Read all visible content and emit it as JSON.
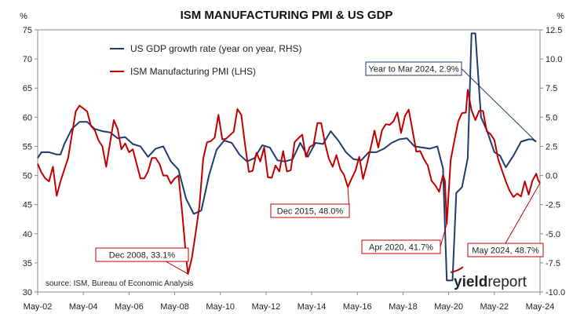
{
  "chart_data": {
    "type": "line",
    "title": "ISM MANUFACTURING PMI & US GDP",
    "left_axis": {
      "unit": "%",
      "ylim": [
        30,
        75
      ],
      "ticks": [
        "30",
        "35",
        "40",
        "45",
        "50",
        "55",
        "60",
        "65",
        "70",
        "75"
      ]
    },
    "right_axis": {
      "unit": "%",
      "ylim": [
        -10.0,
        12.5
      ],
      "ticks": [
        "-10.0",
        "-7.5",
        "-5.0",
        "-2.5",
        "0.0",
        "2.5",
        "5.0",
        "7.5",
        "10.0",
        "12.5"
      ]
    },
    "x_ticks": [
      "May-02",
      "May-04",
      "May-06",
      "May-08",
      "May-10",
      "May-12",
      "May-14",
      "May-16",
      "May-18",
      "May-20",
      "May-22",
      "May-24"
    ],
    "grid": false,
    "legend_position": "top-left",
    "series": [
      {
        "name": "US GDP growth rate (year on year, RHS)",
        "axis": "right",
        "color": "#1f3a6e",
        "points": [
          [
            "2002-05",
            1.5
          ],
          [
            "2002-07",
            2.0
          ],
          [
            "2002-11",
            2.0
          ],
          [
            "2003-03",
            1.8
          ],
          [
            "2003-05",
            1.8
          ],
          [
            "2003-07",
            2.7
          ],
          [
            "2003-11",
            4.0
          ],
          [
            "2004-03",
            4.6
          ],
          [
            "2004-07",
            4.6
          ],
          [
            "2004-11",
            4.0
          ],
          [
            "2005-03",
            3.8
          ],
          [
            "2005-07",
            3.7
          ],
          [
            "2005-11",
            3.2
          ],
          [
            "2006-03",
            3.3
          ],
          [
            "2006-07",
            2.7
          ],
          [
            "2006-11",
            2.5
          ],
          [
            "2007-03",
            1.6
          ],
          [
            "2007-07",
            2.3
          ],
          [
            "2007-11",
            2.5
          ],
          [
            "2008-03",
            1.2
          ],
          [
            "2008-07",
            0.5
          ],
          [
            "2008-11",
            -2.0
          ],
          [
            "2009-03",
            -3.3
          ],
          [
            "2009-07",
            -3.0
          ],
          [
            "2009-11",
            0.0
          ],
          [
            "2010-03",
            2.2
          ],
          [
            "2010-07",
            3.0
          ],
          [
            "2010-11",
            2.8
          ],
          [
            "2011-03",
            1.8
          ],
          [
            "2011-07",
            1.2
          ],
          [
            "2011-11",
            1.5
          ],
          [
            "2012-03",
            2.6
          ],
          [
            "2012-07",
            2.4
          ],
          [
            "2012-11",
            1.3
          ],
          [
            "2013-03",
            1.2
          ],
          [
            "2013-07",
            1.4
          ],
          [
            "2013-11",
            2.8
          ],
          [
            "2014-03",
            1.6
          ],
          [
            "2014-07",
            2.8
          ],
          [
            "2014-11",
            2.7
          ],
          [
            "2015-03",
            3.8
          ],
          [
            "2015-07",
            3.0
          ],
          [
            "2015-11",
            2.0
          ],
          [
            "2016-03",
            1.4
          ],
          [
            "2016-07",
            1.3
          ],
          [
            "2016-11",
            2.0
          ],
          [
            "2017-03",
            2.0
          ],
          [
            "2017-07",
            2.3
          ],
          [
            "2017-11",
            2.8
          ],
          [
            "2018-03",
            3.1
          ],
          [
            "2018-07",
            3.2
          ],
          [
            "2018-11",
            2.5
          ],
          [
            "2019-03",
            2.4
          ],
          [
            "2019-07",
            2.3
          ],
          [
            "2019-11",
            2.5
          ],
          [
            "2020-02",
            0.6
          ],
          [
            "2020-04",
            -9.0
          ],
          [
            "2020-07",
            -9.0
          ],
          [
            "2020-09",
            -1.5
          ],
          [
            "2020-12",
            -1.0
          ],
          [
            "2021-03",
            1.5
          ],
          [
            "2021-05",
            12.2
          ],
          [
            "2021-07",
            12.2
          ],
          [
            "2021-10",
            5.0
          ],
          [
            "2022-01",
            3.9
          ],
          [
            "2022-05",
            2.0
          ],
          [
            "2022-08",
            1.7
          ],
          [
            "2022-11",
            0.7
          ],
          [
            "2023-03",
            1.7
          ],
          [
            "2023-07",
            2.9
          ],
          [
            "2023-11",
            3.1
          ],
          [
            "2024-01",
            3.1
          ],
          [
            "2024-03",
            2.9
          ]
        ]
      },
      {
        "name": "ISM Manufacturing PMI (LHS)",
        "axis": "left",
        "color": "#c00000",
        "points": [
          [
            "2002-05",
            52.0
          ],
          [
            "2002-07",
            50.5
          ],
          [
            "2002-09",
            49.5
          ],
          [
            "2002-11",
            49.0
          ],
          [
            "2003-01",
            51.5
          ],
          [
            "2003-03",
            46.5
          ],
          [
            "2003-05",
            49.0
          ],
          [
            "2003-07",
            51.0
          ],
          [
            "2003-09",
            53.0
          ],
          [
            "2003-11",
            57.0
          ],
          [
            "2004-01",
            61.0
          ],
          [
            "2004-03",
            62.0
          ],
          [
            "2004-05",
            61.5
          ],
          [
            "2004-07",
            61.0
          ],
          [
            "2004-09",
            58.5
          ],
          [
            "2004-11",
            57.8
          ],
          [
            "2005-01",
            56.0
          ],
          [
            "2005-03",
            55.0
          ],
          [
            "2005-05",
            51.5
          ],
          [
            "2005-07",
            55.5
          ],
          [
            "2005-09",
            59.5
          ],
          [
            "2005-11",
            58.0
          ],
          [
            "2006-01",
            54.5
          ],
          [
            "2006-03",
            55.5
          ],
          [
            "2006-05",
            54.0
          ],
          [
            "2006-07",
            54.5
          ],
          [
            "2006-09",
            52.0
          ],
          [
            "2006-11",
            49.5
          ],
          [
            "2007-01",
            49.5
          ],
          [
            "2007-03",
            50.7
          ],
          [
            "2007-05",
            53.0
          ],
          [
            "2007-07",
            53.0
          ],
          [
            "2007-09",
            52.0
          ],
          [
            "2007-11",
            50.0
          ],
          [
            "2008-01",
            50.0
          ],
          [
            "2008-03",
            48.6
          ],
          [
            "2008-05",
            49.5
          ],
          [
            "2008-07",
            50.0
          ],
          [
            "2008-09",
            43.5
          ],
          [
            "2008-11",
            36.0
          ],
          [
            "2008-12",
            33.1
          ],
          [
            "2009-02",
            35.8
          ],
          [
            "2009-04",
            40.1
          ],
          [
            "2009-06",
            44.8
          ],
          [
            "2009-08",
            52.9
          ],
          [
            "2009-10",
            55.7
          ],
          [
            "2009-12",
            55.9
          ],
          [
            "2010-02",
            56.5
          ],
          [
            "2010-04",
            60.4
          ],
          [
            "2010-06",
            56.2
          ],
          [
            "2010-08",
            56.3
          ],
          [
            "2010-10",
            56.9
          ],
          [
            "2010-12",
            57.5
          ],
          [
            "2011-02",
            61.4
          ],
          [
            "2011-04",
            60.4
          ],
          [
            "2011-06",
            55.3
          ],
          [
            "2011-08",
            50.6
          ],
          [
            "2011-10",
            50.8
          ],
          [
            "2011-12",
            53.9
          ],
          [
            "2012-02",
            52.4
          ],
          [
            "2012-04",
            54.8
          ],
          [
            "2012-06",
            49.7
          ],
          [
            "2012-08",
            49.6
          ],
          [
            "2012-10",
            51.7
          ],
          [
            "2012-12",
            50.7
          ],
          [
            "2013-02",
            54.2
          ],
          [
            "2013-04",
            50.7
          ],
          [
            "2013-06",
            50.9
          ],
          [
            "2013-08",
            55.7
          ],
          [
            "2013-10",
            56.4
          ],
          [
            "2013-12",
            57.0
          ],
          [
            "2014-02",
            53.2
          ],
          [
            "2014-04",
            54.9
          ],
          [
            "2014-06",
            55.3
          ],
          [
            "2014-08",
            59.0
          ],
          [
            "2014-10",
            59.0
          ],
          [
            "2014-12",
            55.5
          ],
          [
            "2015-02",
            52.9
          ],
          [
            "2015-04",
            51.5
          ],
          [
            "2015-06",
            53.5
          ],
          [
            "2015-08",
            51.1
          ],
          [
            "2015-10",
            50.1
          ],
          [
            "2015-12",
            48.0
          ],
          [
            "2016-02",
            49.5
          ],
          [
            "2016-04",
            50.8
          ],
          [
            "2016-06",
            53.2
          ],
          [
            "2016-08",
            49.4
          ],
          [
            "2016-10",
            51.9
          ],
          [
            "2016-12",
            54.7
          ],
          [
            "2017-02",
            57.7
          ],
          [
            "2017-04",
            54.8
          ],
          [
            "2017-06",
            57.8
          ],
          [
            "2017-08",
            58.8
          ],
          [
            "2017-10",
            58.7
          ],
          [
            "2017-12",
            59.3
          ],
          [
            "2018-02",
            60.8
          ],
          [
            "2018-04",
            57.3
          ],
          [
            "2018-06",
            60.2
          ],
          [
            "2018-08",
            61.3
          ],
          [
            "2018-10",
            57.7
          ],
          [
            "2018-12",
            54.1
          ],
          [
            "2019-02",
            54.2
          ],
          [
            "2019-04",
            52.8
          ],
          [
            "2019-06",
            51.7
          ],
          [
            "2019-08",
            49.1
          ],
          [
            "2019-10",
            48.3
          ],
          [
            "2019-12",
            47.2
          ],
          [
            "2020-02",
            50.1
          ],
          [
            "2020-03",
            49.1
          ],
          [
            "2020-04",
            41.7
          ],
          [
            "2020-06",
            52.6
          ],
          [
            "2020-08",
            56.0
          ],
          [
            "2020-10",
            59.3
          ],
          [
            "2020-12",
            60.7
          ],
          [
            "2021-02",
            60.8
          ],
          [
            "2021-03",
            64.7
          ],
          [
            "2021-05",
            61.2
          ],
          [
            "2021-07",
            59.5
          ],
          [
            "2021-09",
            61.1
          ],
          [
            "2021-11",
            61.1
          ],
          [
            "2022-01",
            57.6
          ],
          [
            "2022-03",
            57.1
          ],
          [
            "2022-05",
            56.1
          ],
          [
            "2022-07",
            52.8
          ],
          [
            "2022-09",
            50.9
          ],
          [
            "2022-11",
            49.0
          ],
          [
            "2023-01",
            47.4
          ],
          [
            "2023-03",
            46.3
          ],
          [
            "2023-05",
            46.9
          ],
          [
            "2023-07",
            46.4
          ],
          [
            "2023-09",
            49.0
          ],
          [
            "2023-11",
            46.7
          ],
          [
            "2024-01",
            49.1
          ],
          [
            "2024-03",
            50.3
          ],
          [
            "2024-04",
            49.2
          ],
          [
            "2024-05",
            48.7
          ]
        ]
      }
    ],
    "annotations": [
      {
        "id": "dec2008",
        "text": "Dec 2008, 33.1%",
        "series": "ISM Manufacturing PMI (LHS)",
        "x": "2008-12",
        "y": 33.1
      },
      {
        "id": "dec2015",
        "text": "Dec 2015, 48.0%",
        "series": "ISM Manufacturing PMI (LHS)",
        "x": "2015-12",
        "y": 48.0
      },
      {
        "id": "apr2020",
        "text": "Apr 2020, 41.7%",
        "series": "ISM Manufacturing PMI (LHS)",
        "x": "2020-04",
        "y": 41.7
      },
      {
        "id": "may2024",
        "text": "May 2024, 48.7%",
        "series": "ISM Manufacturing PMI (LHS)",
        "x": "2024-05",
        "y": 48.7
      },
      {
        "id": "mar2024",
        "text": "Year to Mar 2024, 2.9%",
        "series": "US GDP growth rate (year on year, RHS)",
        "x": "2024-03",
        "y": 2.9
      }
    ],
    "source": "source: ISM, Bureau of Economic Analysis"
  },
  "brand": {
    "part1": "yield",
    "part2": "report"
  }
}
